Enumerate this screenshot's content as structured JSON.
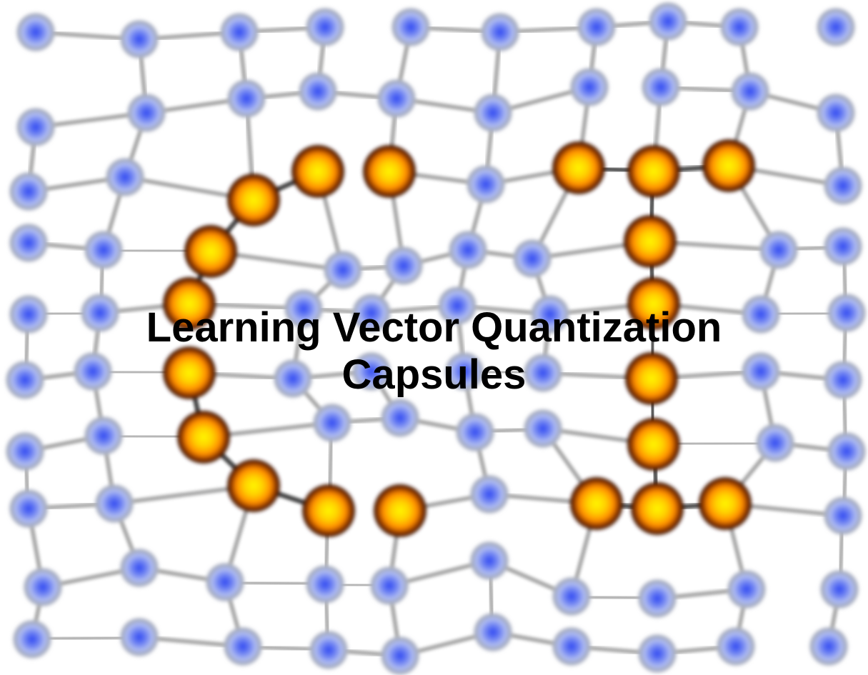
{
  "title": {
    "line1": "Learning Vector Quantization",
    "line2": "Capsules"
  },
  "colors": {
    "background": "#ffffff",
    "edge": "#8a8a8a",
    "blue_node_center": "#3d55f0",
    "blue_node_halo": "#aebaf2",
    "orange_node_center": "#fff200",
    "orange_node_mid": "#ff9a00",
    "orange_node_rim": "#3a1400",
    "title_text": "#000000"
  },
  "icons": {
    "blue_node": "blue-prototype-node",
    "orange_node": "orange-capsule-node"
  }
}
